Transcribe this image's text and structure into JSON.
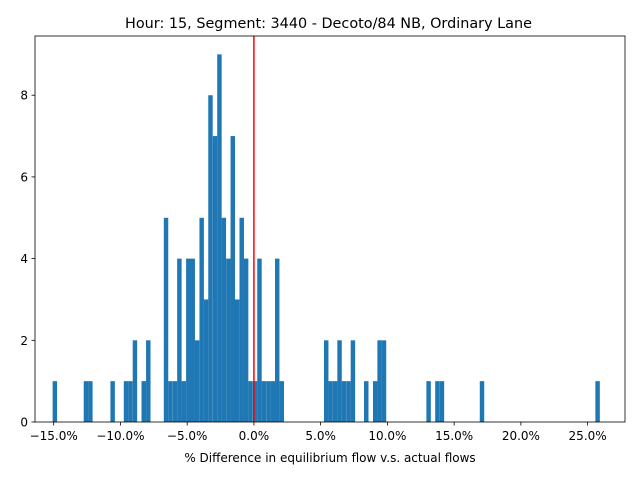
{
  "chart_data": {
    "type": "bar",
    "title": "Hour: 15, Segment: 3440 - Decoto/84 NB, Ordinary Lane",
    "xlabel": "% Difference in equilibrium flow v.s. actual flows",
    "ylabel": "",
    "xlim": [
      -0.164,
      0.278
    ],
    "ylim": [
      0,
      9.45
    ],
    "bin_width": 0.00333,
    "x_ticks": [
      -0.15,
      -0.1,
      -0.05,
      0.0,
      0.05,
      0.1,
      0.15,
      0.2,
      0.25
    ],
    "x_tick_labels": [
      "−15.0%",
      "−10.0%",
      "−5.0%",
      "0.0%",
      "5.0%",
      "10.0%",
      "15.0%",
      "20.0%",
      "25.0%"
    ],
    "y_ticks": [
      0,
      2,
      4,
      6,
      8
    ],
    "y_tick_labels": [
      "0",
      "2",
      "4",
      "6",
      "8"
    ],
    "bins": [
      {
        "start": -0.1508,
        "count": 1
      },
      {
        "start": -0.1275,
        "count": 1
      },
      {
        "start": -0.1242,
        "count": 1
      },
      {
        "start": -0.1075,
        "count": 1
      },
      {
        "start": -0.0975,
        "count": 1
      },
      {
        "start": -0.0942,
        "count": 1
      },
      {
        "start": -0.0908,
        "count": 2
      },
      {
        "start": -0.0842,
        "count": 1
      },
      {
        "start": -0.0808,
        "count": 2
      },
      {
        "start": -0.0675,
        "count": 5
      },
      {
        "start": -0.0642,
        "count": 1
      },
      {
        "start": -0.0608,
        "count": 1
      },
      {
        "start": -0.0575,
        "count": 4
      },
      {
        "start": -0.0542,
        "count": 1
      },
      {
        "start": -0.0508,
        "count": 4
      },
      {
        "start": -0.0475,
        "count": 4
      },
      {
        "start": -0.0442,
        "count": 2
      },
      {
        "start": -0.0408,
        "count": 5
      },
      {
        "start": -0.0375,
        "count": 3
      },
      {
        "start": -0.0342,
        "count": 8
      },
      {
        "start": -0.0308,
        "count": 7
      },
      {
        "start": -0.0275,
        "count": 9
      },
      {
        "start": -0.0242,
        "count": 5
      },
      {
        "start": -0.0208,
        "count": 4
      },
      {
        "start": -0.0175,
        "count": 7
      },
      {
        "start": -0.0142,
        "count": 3
      },
      {
        "start": -0.0108,
        "count": 5
      },
      {
        "start": -0.0075,
        "count": 4
      },
      {
        "start": -0.0042,
        "count": 1
      },
      {
        "start": -0.0008,
        "count": 1
      },
      {
        "start": 0.0025,
        "count": 4
      },
      {
        "start": 0.0058,
        "count": 1
      },
      {
        "start": 0.0092,
        "count": 1
      },
      {
        "start": 0.0125,
        "count": 1
      },
      {
        "start": 0.0158,
        "count": 4
      },
      {
        "start": 0.0192,
        "count": 1
      },
      {
        "start": 0.0525,
        "count": 2
      },
      {
        "start": 0.0558,
        "count": 1
      },
      {
        "start": 0.0592,
        "count": 1
      },
      {
        "start": 0.0625,
        "count": 2
      },
      {
        "start": 0.0658,
        "count": 1
      },
      {
        "start": 0.0692,
        "count": 1
      },
      {
        "start": 0.0725,
        "count": 2
      },
      {
        "start": 0.0825,
        "count": 1
      },
      {
        "start": 0.0892,
        "count": 1
      },
      {
        "start": 0.0925,
        "count": 2
      },
      {
        "start": 0.0958,
        "count": 2
      },
      {
        "start": 0.1292,
        "count": 1
      },
      {
        "start": 0.1358,
        "count": 1
      },
      {
        "start": 0.1392,
        "count": 1
      },
      {
        "start": 0.1692,
        "count": 1
      },
      {
        "start": 0.2558,
        "count": 1
      }
    ],
    "vline": {
      "x": 0.0,
      "color": "#ff0000"
    },
    "bar_color": "#1f77b4",
    "grid": false,
    "legend": "none"
  }
}
